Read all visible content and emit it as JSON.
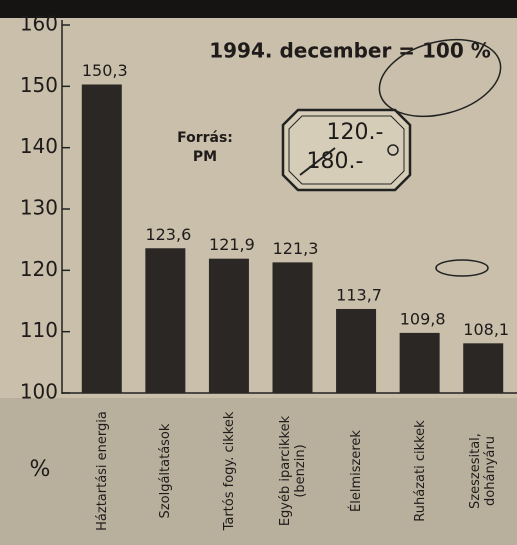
{
  "chart_data": {
    "type": "bar",
    "subtitle": "1994. december = 100 %",
    "source": [
      "Forrás:",
      "PM"
    ],
    "price_tag": [
      "120.-",
      "180.-"
    ],
    "y_unit": "%",
    "categories": [
      "Háztartási energia",
      "Szolgáltatások",
      "Tartós fogy. cikkek",
      "Egyéb iparcikkek (benzin)",
      "Élelmiszerek",
      "Ruházati cikkek",
      "Szeszesital, dohányáru"
    ],
    "values": [
      150.3,
      123.6,
      121.9,
      121.3,
      113.7,
      109.8,
      108.1
    ],
    "value_labels": [
      "150,3",
      "123,6",
      "121,9",
      "121,3",
      "113,7",
      "109,8",
      "108,1"
    ],
    "color": "#2b2725",
    "ylim": [
      100,
      160
    ],
    "yticks": [
      100,
      110,
      120,
      130,
      140,
      150,
      160
    ]
  }
}
